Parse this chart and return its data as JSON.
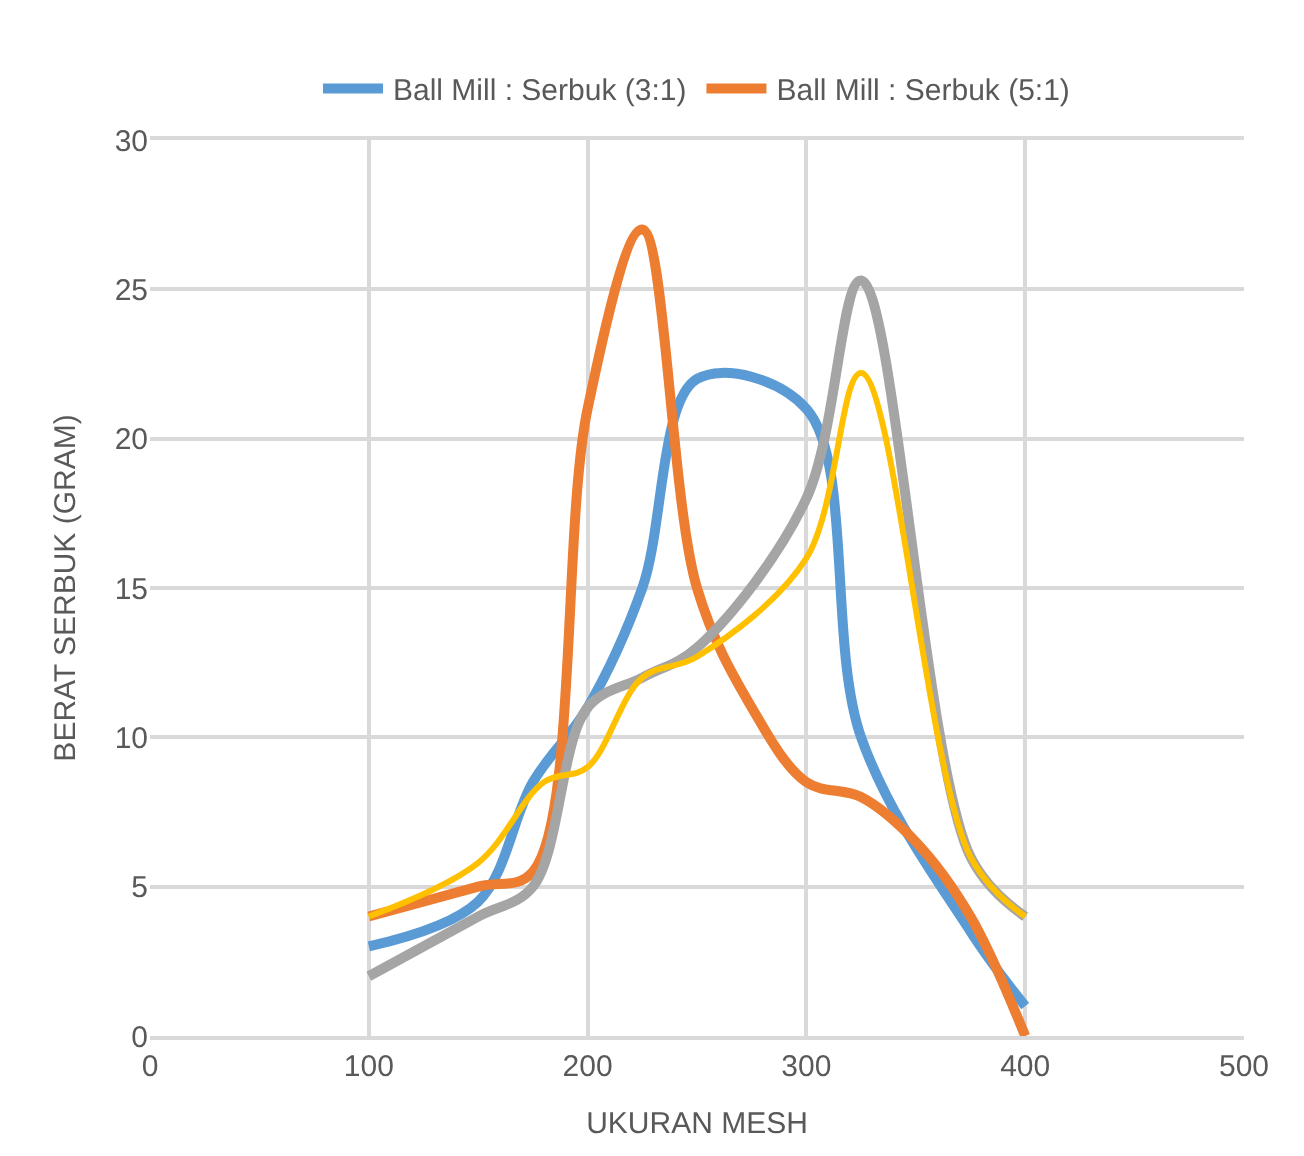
{
  "chart_data": {
    "type": "line",
    "xlabel": "UKURAN MESH",
    "ylabel": "BERAT SERBUK (GRAM)",
    "xlim": [
      0,
      500
    ],
    "xticks": [
      0,
      100,
      200,
      300,
      400,
      500
    ],
    "ylim": [
      0,
      30
    ],
    "yticks": [
      0,
      5,
      10,
      15,
      20,
      25,
      30
    ],
    "grid": true,
    "legend": "top",
    "marker": "none",
    "line_style": "solid",
    "series": [
      {
        "name": "Ball Mill : Serbuk (3:1)",
        "color": "#5b9bd5",
        "x": [
          100,
          150,
          175,
          200,
          225,
          250,
          300,
          325,
          375,
          400
        ],
        "values": [
          3,
          4.5,
          8.5,
          11,
          15,
          22,
          21,
          10,
          3.5,
          1
        ]
      },
      {
        "name": "Ball Mill : Serbuk (5:1)",
        "color": "#ed7d31",
        "x": [
          100,
          150,
          175,
          200,
          225,
          250,
          275,
          300,
          325,
          350,
          375,
          400
        ],
        "values": [
          4,
          5,
          5.5,
          21,
          27,
          15,
          11,
          8.5,
          8,
          6.5,
          4,
          0
        ]
      },
      {
        "color": "#a5a5a5",
        "x": [
          100,
          150,
          175,
          200,
          225,
          250,
          300,
          325,
          375,
          400
        ],
        "values": [
          2,
          4,
          5,
          11,
          12,
          13,
          18,
          25.3,
          6,
          4
        ]
      },
      {
        "color": "#ffc000",
        "x": [
          100,
          150,
          180,
          200,
          225,
          250,
          300,
          325,
          375,
          400
        ],
        "values": [
          4,
          5.8,
          8.5,
          9,
          12,
          12.7,
          16,
          22.2,
          6,
          4
        ]
      }
    ]
  }
}
